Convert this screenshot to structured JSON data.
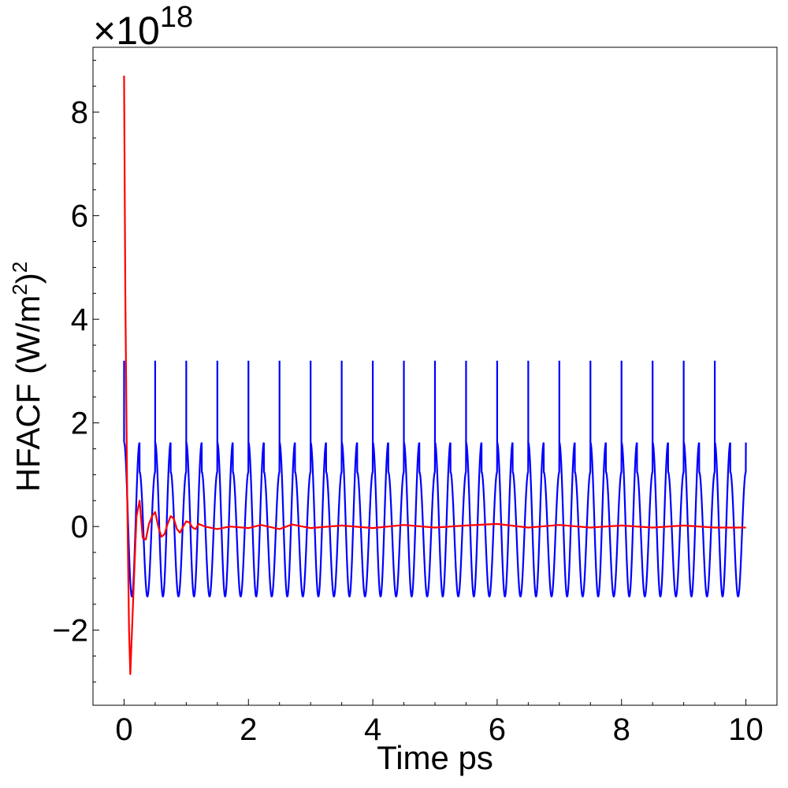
{
  "chart_data": {
    "type": "line",
    "xlabel": "Time ps",
    "ylabel": "HFACF (W/m²)²",
    "ylabel_parts": {
      "main": "HFACF (W/m",
      "sup1": "2",
      "mid": ")",
      "sup2": "2"
    },
    "y_multiplier": {
      "base": "×10",
      "exponent": "18"
    },
    "xlim": [
      -0.5,
      10.5
    ],
    "ylim": [
      -3.45,
      9.25
    ],
    "x_ticks": [
      0,
      2,
      4,
      6,
      8,
      10
    ],
    "x_tick_labels": [
      "0",
      "2",
      "4",
      "6",
      "8",
      "10"
    ],
    "y_ticks": [
      -2,
      0,
      2,
      4,
      6,
      8
    ],
    "y_tick_labels": [
      "−2",
      "0",
      "2",
      "4",
      "6",
      "8"
    ],
    "grid": false,
    "series": [
      {
        "color": "#0000ff",
        "model": "periodic",
        "period": 0.5,
        "spike_value": 3.2,
        "peak_value": 1.62,
        "secondary_peak_value": 1.05,
        "trough_value": -1.35,
        "x_range": [
          0,
          10
        ]
      },
      {
        "color": "#ff0000",
        "x": [
          0,
          0.02,
          0.05,
          0.08,
          0.1,
          0.15,
          0.2,
          0.25,
          0.3,
          0.35,
          0.4,
          0.45,
          0.5,
          0.55,
          0.6,
          0.65,
          0.7,
          0.75,
          0.8,
          0.85,
          0.9,
          0.95,
          1.0,
          1.05,
          1.1,
          1.15,
          1.2,
          1.3,
          1.5,
          1.7,
          2.0,
          2.2,
          2.5,
          2.7,
          3.0,
          3.5,
          4.0,
          4.5,
          5.0,
          5.5,
          6.0,
          6.5,
          7.0,
          7.5,
          8.0,
          8.5,
          9.0,
          9.5,
          10.0
        ],
        "y": [
          8.7,
          4.5,
          0.6,
          -2.0,
          -2.85,
          -1.3,
          0.2,
          0.5,
          -0.22,
          -0.25,
          0.05,
          0.2,
          0.28,
          0.0,
          -0.2,
          -0.15,
          0.05,
          0.2,
          0.15,
          -0.05,
          -0.12,
          0.0,
          0.1,
          0.08,
          -0.02,
          -0.05,
          0.05,
          0.0,
          -0.05,
          0.0,
          -0.03,
          0.03,
          -0.05,
          0.04,
          -0.03,
          0.02,
          -0.03,
          0.03,
          -0.02,
          0.02,
          0.05,
          -0.02,
          0.03,
          -0.02,
          0.02,
          -0.02,
          0.02,
          -0.02,
          -0.02
        ]
      }
    ]
  }
}
